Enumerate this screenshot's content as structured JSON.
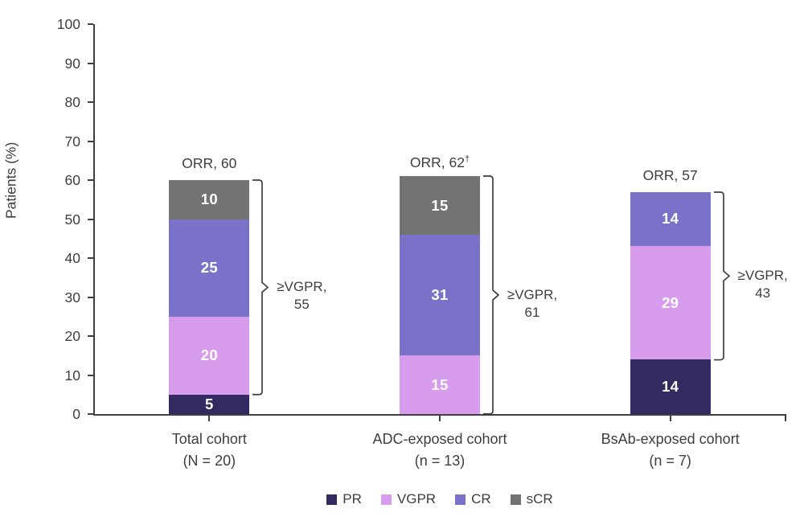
{
  "chart_data": {
    "type": "bar",
    "subtype": "stacked-vertical",
    "title": "",
    "ylabel": "Patients (%)",
    "xlabel": "",
    "ylim": [
      0,
      100
    ],
    "yticks": [
      0,
      10,
      20,
      30,
      40,
      50,
      60,
      70,
      80,
      90,
      100
    ],
    "grid": "off",
    "legend_position": "bottom-center",
    "categories": [
      {
        "label": "Total cohort",
        "sublabel": "(N = 20)",
        "orr_text": "ORR, 60",
        "orr_sup": "",
        "total": 60,
        "bracket": {
          "from": 5,
          "to": 60,
          "label_line1": "≥VGPR,",
          "label_line2": "55",
          "value": 55
        }
      },
      {
        "label": "ADC-exposed cohort",
        "sublabel": "(n = 13)",
        "orr_text": "ORR, 62",
        "orr_sup": "†",
        "total": 61,
        "bracket": {
          "from": 0,
          "to": 61,
          "label_line1": "≥VGPR,",
          "label_line2": "61",
          "value": 61
        }
      },
      {
        "label": "BsAb-exposed cohort",
        "sublabel": "(n = 7)",
        "orr_text": "ORR, 57",
        "orr_sup": "",
        "total": 57,
        "bracket": {
          "from": 14,
          "to": 57,
          "label_line1": "≥VGPR,",
          "label_line2": "43",
          "value": 43
        }
      }
    ],
    "series": [
      {
        "name": "PR",
        "color": "#322a60",
        "values": [
          5,
          null,
          14
        ]
      },
      {
        "name": "VGPR",
        "color": "#d79ceb",
        "values": [
          20,
          15,
          29
        ]
      },
      {
        "name": "CR",
        "color": "#7a72c8",
        "values": [
          25,
          31,
          14
        ]
      },
      {
        "name": "sCR",
        "color": "#737373",
        "values": [
          10,
          15,
          null
        ]
      }
    ],
    "legend": [
      "PR",
      "VGPR",
      "CR",
      "sCR"
    ]
  },
  "colors": {
    "axis": "#3f3f3f",
    "text": "#3e3e3e",
    "bar_value_text": "#ffffff",
    "background": "#ffffff"
  }
}
